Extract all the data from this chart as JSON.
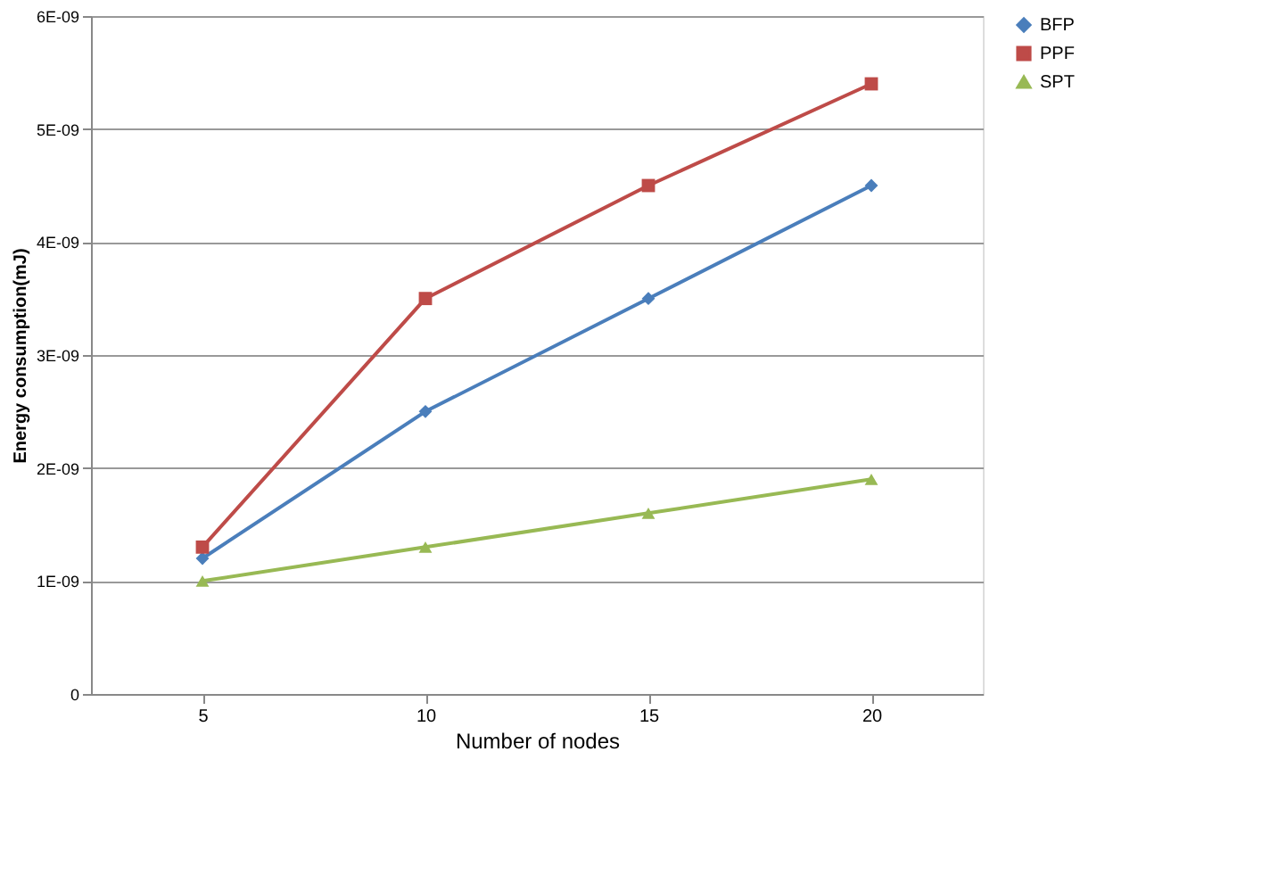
{
  "chart_data": {
    "type": "line",
    "xlabel": "Number of nodes",
    "ylabel": "Energy consumption(mJ)",
    "categories": [
      "5",
      "10",
      "15",
      "20"
    ],
    "series": [
      {
        "name": "BFP",
        "color": "#4a7ebb",
        "marker": "diamond",
        "values": [
          1.2e-09,
          2.5e-09,
          3.5e-09,
          4.5e-09
        ]
      },
      {
        "name": "PPF",
        "color": "#be4b48",
        "marker": "square",
        "values": [
          1.3e-09,
          3.5e-09,
          4.5e-09,
          5.4e-09
        ]
      },
      {
        "name": "SPT",
        "color": "#98b954",
        "marker": "triangle",
        "values": [
          1e-09,
          1.3e-09,
          1.6e-09,
          1.9e-09
        ]
      }
    ],
    "ylim": [
      0,
      6e-09
    ],
    "yticks": [
      0,
      {
        "value": 1e-09,
        "label": "1E-09"
      },
      {
        "value": 2e-09,
        "label": "2E-09"
      },
      {
        "value": 3e-09,
        "label": "3E-09"
      },
      {
        "value": 4e-09,
        "label": "4E-09"
      },
      {
        "value": 5e-09,
        "label": "5E-09"
      },
      {
        "value": 6e-09,
        "label": "6E-09"
      }
    ],
    "grid": "y",
    "legend": "right",
    "line_style": "solid"
  }
}
